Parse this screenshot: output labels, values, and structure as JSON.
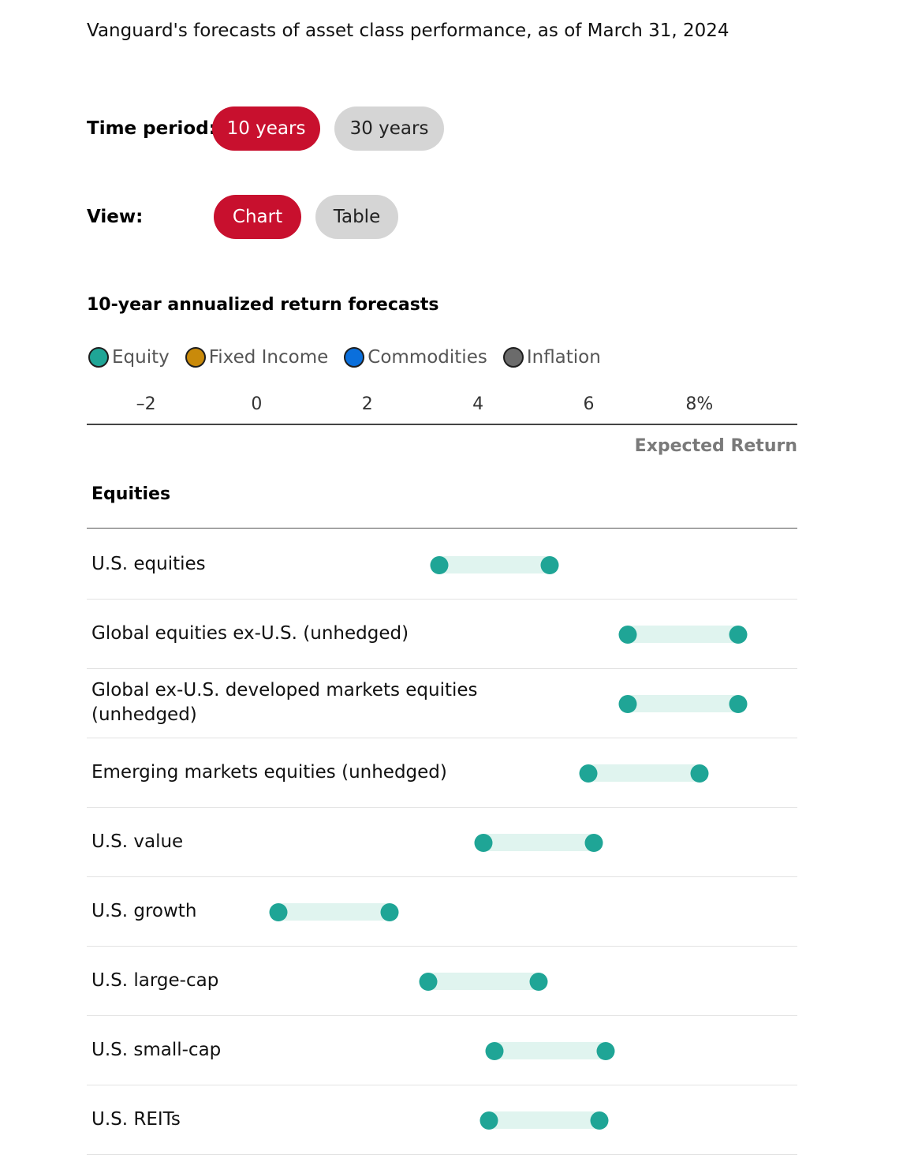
{
  "subtitle": "Vanguard's forecasts of asset class performance, as of March 31, 2024",
  "controls": {
    "time_period": {
      "label": "Time period:",
      "options": [
        "10 years",
        "30 years"
      ],
      "selected": "10 years"
    },
    "view": {
      "label": "View:",
      "options": [
        "Chart",
        "Table"
      ],
      "selected": "Chart"
    }
  },
  "colors": {
    "accent": "#c8102e",
    "inactive_pill": "#d5d5d5",
    "equity": "#1fa596",
    "fixed_income": "#c98a0a",
    "commodities": "#0a6fdc",
    "inflation": "#6b6b6b",
    "range_fill": "#e0f4ef"
  },
  "chart_data": {
    "type": "range",
    "title": "10-year annualized return forecasts",
    "legend": [
      {
        "name": "Equity",
        "color": "#1fa596"
      },
      {
        "name": "Fixed Income",
        "color": "#c98a0a"
      },
      {
        "name": "Commodities",
        "color": "#0a6fdc"
      },
      {
        "name": "Inflation",
        "color": "#6b6b6b"
      }
    ],
    "x_ticks": [
      {
        "value": -2,
        "label": "–2"
      },
      {
        "value": 0,
        "label": "0"
      },
      {
        "value": 2,
        "label": "2"
      },
      {
        "value": 4,
        "label": "4"
      },
      {
        "value": 6,
        "label": "6"
      },
      {
        "value": 8,
        "label": "8%"
      }
    ],
    "xlim": [
      -3.07,
      9.77
    ],
    "xlabel": "Expected Return",
    "groups": [
      {
        "title": "Equities",
        "rows": [
          {
            "label": "U.S. equities",
            "low": 3.3,
            "high": 5.3
          },
          {
            "label": "Global equities ex-U.S. (unhedged)",
            "low": 6.7,
            "high": 8.7
          },
          {
            "label": "Global ex-U.S. developed markets equities (unhedged)",
            "low": 6.7,
            "high": 8.7
          },
          {
            "label": "Emerging markets equities (unhedged)",
            "low": 6.0,
            "high": 8.0
          },
          {
            "label": "U.S. value",
            "low": 4.1,
            "high": 6.1
          },
          {
            "label": "U.S. growth",
            "low": 0.4,
            "high": 2.4
          },
          {
            "label": "U.S. large-cap",
            "low": 3.1,
            "high": 5.1
          },
          {
            "label": "U.S. small-cap",
            "low": 4.3,
            "high": 6.3
          },
          {
            "label": "U.S. REITs",
            "low": 4.2,
            "high": 6.2
          }
        ]
      }
    ]
  }
}
